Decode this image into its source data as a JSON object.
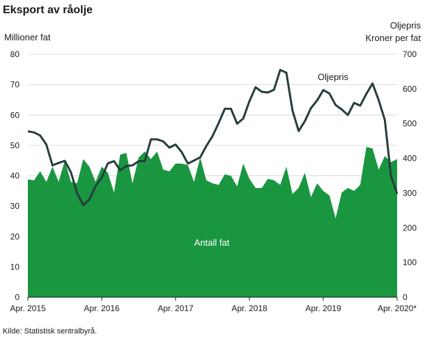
{
  "title": "Eksport av råolje",
  "source": "Kilde: Statistisk sentralbyrå.",
  "chart_data": {
    "type": "area+line",
    "title": "Eksport av råolje",
    "y_left_label": "Millioner fat",
    "y_right_label_line1": "Oljepris",
    "y_right_label_line2": "Kroner per fat",
    "ylim_left": [
      0,
      80
    ],
    "ylim_right": [
      0,
      700
    ],
    "yticks_left": [
      0,
      10,
      20,
      30,
      40,
      50,
      60,
      70,
      80
    ],
    "yticks_right": [
      0,
      100,
      200,
      300,
      400,
      500,
      600,
      700
    ],
    "x_tick_labels": [
      "Apr. 2015",
      "Apr. 2016",
      "Apr. 2017",
      "Apr. 2018",
      "Apr. 2019",
      "Apr. 2020*"
    ],
    "x_range": [
      "Apr. 2015",
      "Jun. 2020"
    ],
    "grid": true,
    "series": [
      {
        "name": "Antall fat",
        "axis": "left",
        "color": "#1a9641",
        "values": [
          38.8,
          38.5,
          41.5,
          38.0,
          43.0,
          38.0,
          45.0,
          38.0,
          37.5,
          45.5,
          43.0,
          38.0,
          43.0,
          41.0,
          34.5,
          47.0,
          47.5,
          37.5,
          46.0,
          48.0,
          45.5,
          48.0,
          42.0,
          41.5,
          44.0,
          44.0,
          43.5,
          38.0,
          46.0,
          38.5,
          37.5,
          37.0,
          40.5,
          40.0,
          36.5,
          44.0,
          39.0,
          36.0,
          36.0,
          39.0,
          38.5,
          37.0,
          43.0,
          34.0,
          36.0,
          41.0,
          33.0,
          37.5,
          35.0,
          33.5,
          26.0,
          34.5,
          36.0,
          35.0,
          37.0,
          49.5,
          49.0,
          42.0,
          46.5,
          44.5,
          45.5
        ]
      },
      {
        "name": "Oljepris",
        "axis": "right",
        "color": "#263d3d",
        "values": [
          478,
          475,
          466,
          440,
          380,
          387,
          393,
          360,
          300,
          265,
          282,
          320,
          345,
          386,
          392,
          366,
          378,
          380,
          392,
          392,
          455,
          455,
          449,
          431,
          440,
          418,
          385,
          394,
          403,
          436,
          464,
          502,
          543,
          543,
          500,
          515,
          565,
          605,
          592,
          590,
          598,
          655,
          647,
          538,
          479,
          507,
          545,
          567,
          597,
          587,
          554,
          541,
          525,
          560,
          552,
          586,
          616,
          568,
          511,
          349,
          298
        ]
      }
    ],
    "annotations": [
      "Oljepris",
      "Antall fat"
    ]
  }
}
